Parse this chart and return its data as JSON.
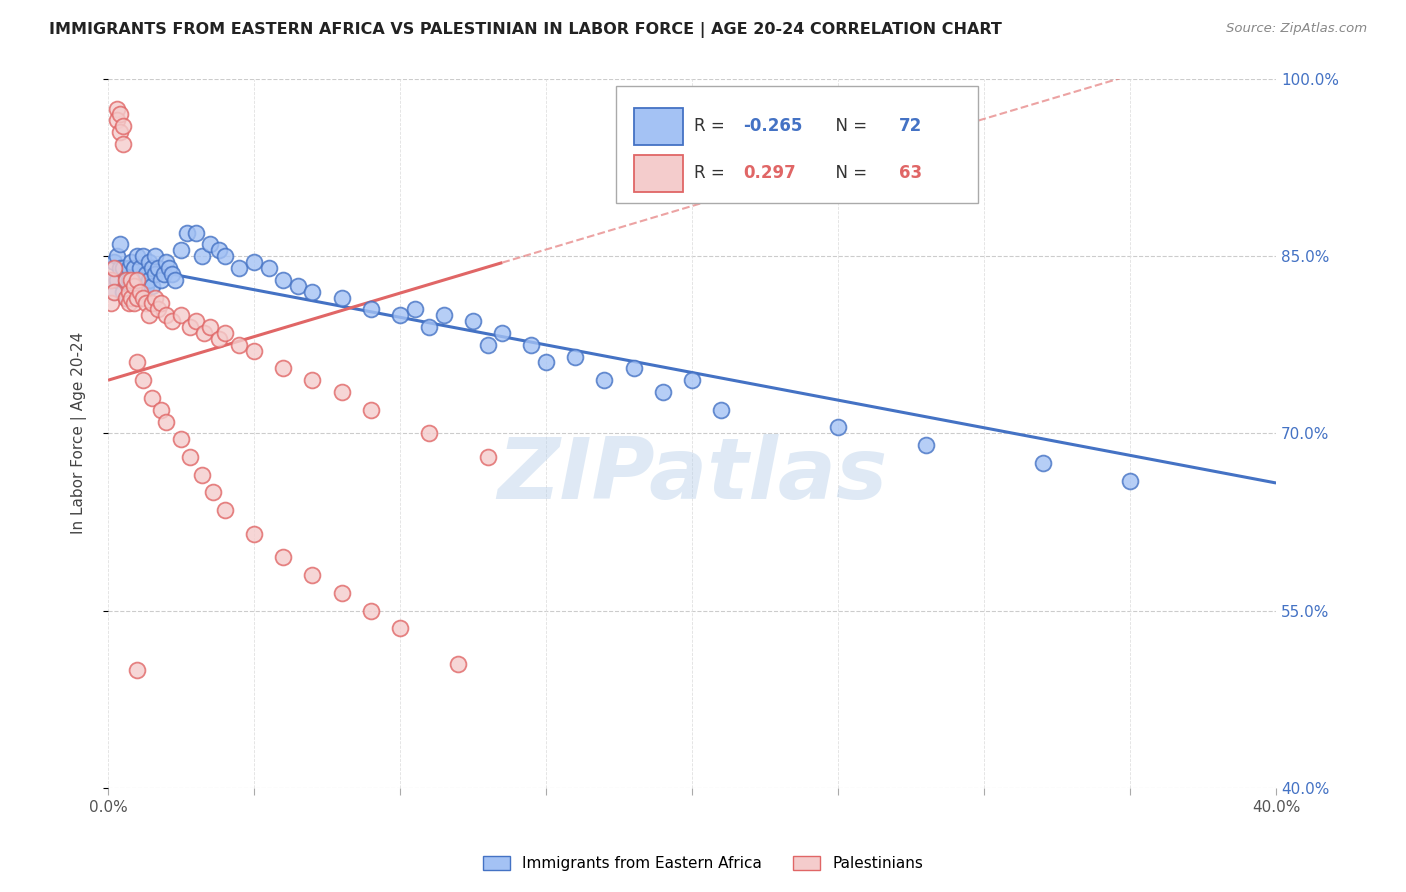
{
  "title": "IMMIGRANTS FROM EASTERN AFRICA VS PALESTINIAN IN LABOR FORCE | AGE 20-24 CORRELATION CHART",
  "source": "Source: ZipAtlas.com",
  "ylabel": "In Labor Force | Age 20-24",
  "x_min": 0.0,
  "x_max": 0.4,
  "y_min": 0.4,
  "y_max": 1.0,
  "y_ticks": [
    0.4,
    0.55,
    0.7,
    0.85,
    1.0
  ],
  "y_tick_labels_right": [
    "40.0%",
    "55.0%",
    "70.0%",
    "85.0%",
    "100.0%"
  ],
  "x_ticks": [
    0.0,
    0.05,
    0.1,
    0.15,
    0.2,
    0.25,
    0.3,
    0.35,
    0.4
  ],
  "x_tick_labels": [
    "0.0%",
    "",
    "",
    "",
    "",
    "",
    "",
    "",
    "40.0%"
  ],
  "blue_fill": "#a4c2f4",
  "pink_fill": "#f4cccc",
  "blue_edge": "#4472c4",
  "pink_edge": "#e06666",
  "blue_line": "#4472c4",
  "pink_line": "#e06666",
  "blue_trend": [
    0.0,
    0.845,
    0.4,
    0.658
  ],
  "pink_trend_solid": [
    0.0,
    0.745,
    0.135,
    0.855
  ],
  "pink_trend_dash": [
    0.0,
    0.745,
    -0.02,
    0.735
  ],
  "pink_full_line": [
    0.0,
    0.745,
    0.4,
    1.04
  ],
  "watermark": "ZIPatlas",
  "blue_label": "Immigrants from Eastern Africa",
  "pink_label": "Palestinians",
  "blue_scatter_x": [
    0.001,
    0.002,
    0.002,
    0.003,
    0.003,
    0.004,
    0.004,
    0.005,
    0.005,
    0.006,
    0.006,
    0.007,
    0.007,
    0.008,
    0.008,
    0.009,
    0.009,
    0.01,
    0.01,
    0.011,
    0.011,
    0.012,
    0.012,
    0.013,
    0.013,
    0.014,
    0.014,
    0.015,
    0.015,
    0.016,
    0.016,
    0.017,
    0.018,
    0.019,
    0.02,
    0.021,
    0.022,
    0.023,
    0.025,
    0.027,
    0.03,
    0.032,
    0.035,
    0.038,
    0.04,
    0.045,
    0.05,
    0.055,
    0.06,
    0.065,
    0.07,
    0.08,
    0.09,
    0.1,
    0.11,
    0.13,
    0.15,
    0.17,
    0.19,
    0.21,
    0.25,
    0.28,
    0.32,
    0.35,
    0.105,
    0.115,
    0.125,
    0.135,
    0.145,
    0.16,
    0.18,
    0.2
  ],
  "blue_scatter_y": [
    0.83,
    0.845,
    0.82,
    0.85,
    0.83,
    0.84,
    0.86,
    0.82,
    0.84,
    0.83,
    0.815,
    0.84,
    0.83,
    0.845,
    0.825,
    0.84,
    0.82,
    0.85,
    0.825,
    0.84,
    0.83,
    0.85,
    0.82,
    0.835,
    0.825,
    0.845,
    0.83,
    0.84,
    0.825,
    0.85,
    0.835,
    0.84,
    0.83,
    0.835,
    0.845,
    0.84,
    0.835,
    0.83,
    0.855,
    0.87,
    0.87,
    0.85,
    0.86,
    0.855,
    0.85,
    0.84,
    0.845,
    0.84,
    0.83,
    0.825,
    0.82,
    0.815,
    0.805,
    0.8,
    0.79,
    0.775,
    0.76,
    0.745,
    0.735,
    0.72,
    0.705,
    0.69,
    0.675,
    0.66,
    0.805,
    0.8,
    0.795,
    0.785,
    0.775,
    0.765,
    0.755,
    0.745
  ],
  "pink_scatter_x": [
    0.001,
    0.001,
    0.002,
    0.002,
    0.003,
    0.003,
    0.004,
    0.004,
    0.005,
    0.005,
    0.006,
    0.006,
    0.007,
    0.007,
    0.008,
    0.008,
    0.009,
    0.009,
    0.01,
    0.01,
    0.011,
    0.012,
    0.013,
    0.014,
    0.015,
    0.016,
    0.017,
    0.018,
    0.02,
    0.022,
    0.025,
    0.028,
    0.03,
    0.033,
    0.035,
    0.038,
    0.04,
    0.045,
    0.05,
    0.06,
    0.07,
    0.08,
    0.09,
    0.11,
    0.13,
    0.01,
    0.012,
    0.015,
    0.018,
    0.02,
    0.025,
    0.028,
    0.032,
    0.036,
    0.04,
    0.05,
    0.06,
    0.07,
    0.08,
    0.09,
    0.1,
    0.12,
    0.01
  ],
  "pink_scatter_y": [
    0.83,
    0.81,
    0.84,
    0.82,
    0.975,
    0.965,
    0.97,
    0.955,
    0.96,
    0.945,
    0.83,
    0.815,
    0.82,
    0.81,
    0.83,
    0.815,
    0.825,
    0.81,
    0.83,
    0.815,
    0.82,
    0.815,
    0.81,
    0.8,
    0.81,
    0.815,
    0.805,
    0.81,
    0.8,
    0.795,
    0.8,
    0.79,
    0.795,
    0.785,
    0.79,
    0.78,
    0.785,
    0.775,
    0.77,
    0.755,
    0.745,
    0.735,
    0.72,
    0.7,
    0.68,
    0.76,
    0.745,
    0.73,
    0.72,
    0.71,
    0.695,
    0.68,
    0.665,
    0.65,
    0.635,
    0.615,
    0.595,
    0.58,
    0.565,
    0.55,
    0.535,
    0.505,
    0.5
  ]
}
